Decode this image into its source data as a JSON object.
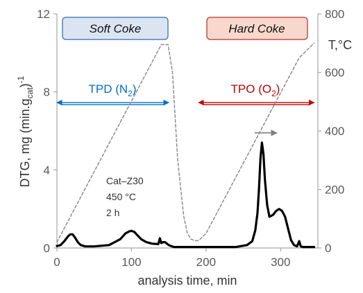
{
  "chart_data": {
    "type": "line",
    "xlabel": "analysis time, min",
    "xlim": [
      0,
      350
    ],
    "x_ticks": [
      "0",
      "100",
      "200",
      "300"
    ],
    "ylabel_left": "DTG, mg (min.g",
    "ylabel_left_sub": "cat",
    "ylabel_left_close": ")",
    "ylabel_left_sup": "-1",
    "ylim_left": [
      0,
      12
    ],
    "y_left_ticks": [
      "0",
      "4",
      "8",
      "12"
    ],
    "ylabel_right": "T,°C",
    "ylim_right": [
      0,
      800
    ],
    "y_right_ticks": [
      "0",
      "200",
      "400",
      "600",
      "800"
    ],
    "grid": false,
    "series": [
      {
        "role": "dtg",
        "axis": "left",
        "color": "#000000",
        "style": "solid",
        "x": [
          0,
          5,
          10,
          15,
          18,
          21,
          24,
          28,
          32,
          38,
          50,
          70,
          85,
          92,
          97,
          100,
          104,
          108,
          113,
          120,
          128,
          136,
          138,
          140,
          142,
          145,
          150,
          153,
          157,
          160,
          190,
          240,
          255,
          262,
          266,
          269,
          271,
          273,
          275,
          277,
          279,
          282,
          285,
          290,
          294,
          298,
          302,
          306,
          310,
          314,
          318,
          322,
          325,
          327,
          330,
          345
        ],
        "y": [
          0.1,
          0.15,
          0.35,
          0.6,
          0.7,
          0.7,
          0.55,
          0.3,
          0.15,
          0.08,
          0.08,
          0.15,
          0.45,
          0.75,
          0.85,
          0.88,
          0.82,
          0.65,
          0.45,
          0.3,
          0.22,
          0.2,
          0.5,
          0.25,
          0.3,
          0.3,
          0.15,
          0.1,
          0.05,
          0.05,
          0.05,
          0.05,
          0.15,
          0.35,
          0.9,
          1.8,
          3.0,
          4.6,
          5.4,
          4.8,
          3.5,
          2.2,
          1.6,
          1.7,
          1.9,
          2.0,
          1.9,
          1.6,
          1.0,
          0.4,
          0.15,
          0.08,
          0.35,
          0.08,
          0.05,
          0.05
        ]
      },
      {
        "role": "temperature",
        "axis": "right",
        "color": "#8c8c8c",
        "style": "dashed",
        "x": [
          0,
          140,
          149,
          155,
          162,
          170,
          175,
          180,
          185,
          190,
          200,
          325,
          345
        ],
        "y": [
          20,
          695,
          695,
          600,
          300,
          110,
          50,
          30,
          25,
          25,
          50,
          650,
          700
        ]
      }
    ],
    "annotations": {
      "soft_coke": {
        "text": "Soft Coke",
        "fill": "#dbe5f1",
        "stroke": "#4f81bd"
      },
      "hard_coke": {
        "text": "Hard Coke",
        "fill": "#f8d7cc",
        "stroke": "#c0504d"
      },
      "tpd": {
        "text": "TPD (N",
        "sub": "2",
        "close": ")",
        "color": "#0070c0",
        "arrow_x": [
          0,
          150
        ]
      },
      "tpo": {
        "text": "TPO (O",
        "sub": "2",
        "close": ")",
        "color": "#c00000",
        "arrow_x": [
          190,
          345
        ]
      },
      "sample_lines": [
        "Cat–Z30",
        "450 °C",
        "2 h"
      ],
      "direction_arrow": {
        "color": "#808080",
        "x": [
          265,
          295
        ],
        "y": 5.9
      }
    }
  }
}
